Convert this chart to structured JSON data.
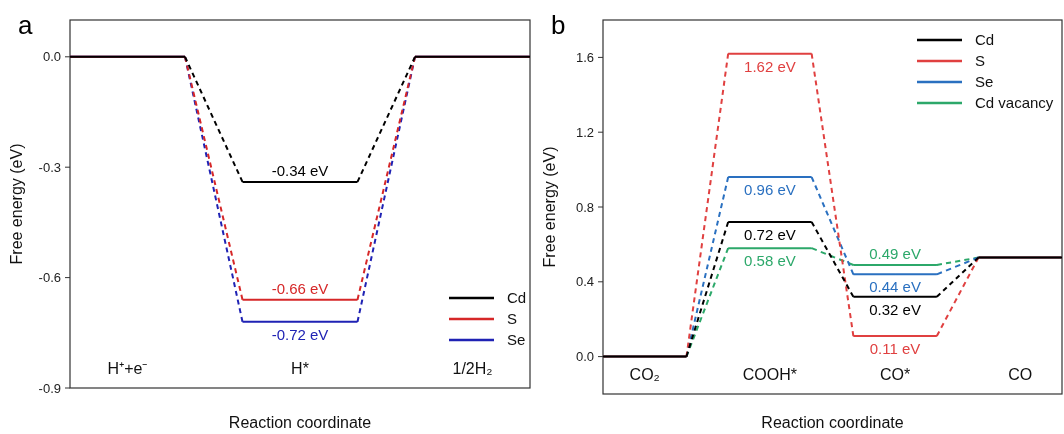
{
  "chart_data": [
    {
      "type": "line",
      "title": "a",
      "xlabel": "Reaction coordinate",
      "ylabel": "Free energy (eV)",
      "categories": [
        null,
        "H⁺+e⁻",
        null,
        null,
        "H*",
        null,
        null,
        "1/2H₂",
        null
      ],
      "ylim": [
        -0.9,
        0.1
      ],
      "yticks": [
        {
          "value": 0,
          "label": "0.0"
        },
        -0.3,
        -0.6,
        -0.9
      ],
      "legend": "bottom right",
      "line_style": "dashed",
      "series": [
        {
          "name": "Cd",
          "color": "#000000",
          "values": [
            0,
            0,
            0,
            -0.34,
            -0.34,
            -0.34,
            0,
            0,
            0
          ],
          "value_labels": [
            null,
            null,
            null,
            null,
            "-0.34 eV",
            null,
            null,
            null,
            null
          ]
        },
        {
          "name": "S",
          "color": "#d62728",
          "values": [
            0,
            0,
            0,
            -0.66,
            -0.66,
            -0.66,
            0,
            0,
            0
          ],
          "value_labels": [
            null,
            null,
            null,
            null,
            "-0.66 eV",
            null,
            null,
            null,
            null
          ]
        },
        {
          "name": "Se",
          "color": "#1f22b4",
          "values": [
            0,
            0,
            0,
            -0.72,
            -0.72,
            -0.72,
            0,
            0,
            0
          ],
          "value_labels": [
            null,
            null,
            null,
            null,
            "-0.72 eV",
            null,
            null,
            null,
            null
          ]
        }
      ]
    },
    {
      "type": "line",
      "title": "b",
      "xlabel": "Reaction coordinate",
      "ylabel": "Free energy (eV)",
      "categories": [
        null,
        "CO₂",
        null,
        null,
        "COOH*",
        null,
        null,
        "CO*",
        null,
        null,
        "CO",
        null
      ],
      "ylim": [
        -0.2,
        1.8
      ],
      "yticks": [
        {
          "value": 0,
          "label": "0.0"
        },
        0.4,
        0.8,
        1.2,
        1.6
      ],
      "legend": "top right",
      "line_style": "dashed",
      "series": [
        {
          "name": "Cd",
          "color": "#000000",
          "values": [
            0,
            0,
            0,
            0.72,
            0.72,
            0.72,
            0.32,
            0.32,
            0.32,
            0.53,
            0.53,
            0.53
          ],
          "value_labels": [
            null,
            null,
            null,
            null,
            "0.72 eV",
            null,
            null,
            "0.32 eV",
            null,
            null,
            null,
            null
          ]
        },
        {
          "name": "S",
          "color": "#e04040",
          "values": [
            0,
            0,
            0,
            1.62,
            1.62,
            1.62,
            0.11,
            0.11,
            0.11,
            0.53,
            0.53,
            0.53
          ],
          "value_labels": [
            null,
            null,
            null,
            null,
            "1.62 eV",
            null,
            null,
            "0.11 eV",
            null,
            null,
            null,
            null
          ]
        },
        {
          "name": "Se",
          "color": "#2a70c0",
          "values": [
            0,
            0,
            0,
            0.96,
            0.96,
            0.96,
            0.44,
            0.44,
            0.44,
            0.53,
            0.53,
            0.53
          ],
          "value_labels": [
            null,
            null,
            null,
            null,
            "0.96 eV",
            null,
            null,
            "0.44 eV",
            null,
            null,
            null,
            null
          ]
        },
        {
          "name": "Cd vacancy",
          "color": "#2ca86a",
          "values": [
            0,
            0,
            0,
            0.58,
            0.58,
            0.58,
            0.49,
            0.49,
            0.49,
            0.53,
            0.53,
            0.53
          ],
          "value_labels": [
            null,
            null,
            null,
            null,
            "0.58 eV",
            null,
            null,
            "0.49 eV",
            null,
            null,
            null,
            null
          ]
        }
      ]
    }
  ]
}
